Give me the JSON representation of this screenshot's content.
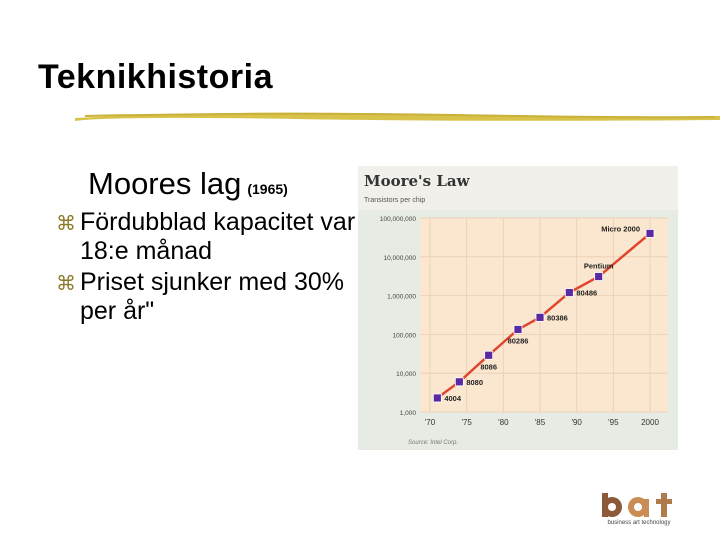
{
  "slide": {
    "title": "Teknikhistoria",
    "subtitle": "Moores lag",
    "subtitle_year": "(1965)",
    "bullet_icon": "z-bullet-icon",
    "bullets": [
      "Fördubblad kapacitet var 18:e månad",
      "Priset sjunker med 30% per år\""
    ],
    "logo_text": "business art technology"
  },
  "colors": {
    "accent": "#d8c24a",
    "chart_bg": "#fbe7cf",
    "chart_header_bg": "#f1f0ea",
    "chart_axis_bg": "#e6ebe4",
    "line": "#e0452e",
    "marker": "#5a2aa0"
  },
  "chart_data": {
    "type": "line",
    "title": "Moore's Law",
    "subtitle": "Transistors per chip",
    "source": "Source: Intel Corp.",
    "scale": "log",
    "ylim": [
      1000,
      100000000
    ],
    "yticks": [
      {
        "value": 100000000,
        "label": "100,000,000"
      },
      {
        "value": 10000000,
        "label": "10,000,000"
      },
      {
        "value": 1000000,
        "label": "1,000,000"
      },
      {
        "value": 100000,
        "label": "100,000"
      },
      {
        "value": 10000,
        "label": "10,000"
      },
      {
        "value": 1000,
        "label": "1,000"
      }
    ],
    "xlim": [
      1970,
      2000
    ],
    "xticks": [
      {
        "value": 1970,
        "label": "'70"
      },
      {
        "value": 1975,
        "label": "'75"
      },
      {
        "value": 1980,
        "label": "'80"
      },
      {
        "value": 1985,
        "label": "'85"
      },
      {
        "value": 1990,
        "label": "'90"
      },
      {
        "value": 1995,
        "label": "'95"
      },
      {
        "value": 2000,
        "label": "2000"
      }
    ],
    "points": [
      {
        "label": "4004",
        "x": 1971,
        "y": 2300,
        "label_pos": "right"
      },
      {
        "label": "8080",
        "x": 1974,
        "y": 6000,
        "label_pos": "right"
      },
      {
        "label": "8086",
        "x": 1978,
        "y": 29000,
        "label_pos": "below"
      },
      {
        "label": "80286",
        "x": 1982,
        "y": 134000,
        "label_pos": "below"
      },
      {
        "label": "80386",
        "x": 1985,
        "y": 275000,
        "label_pos": "right"
      },
      {
        "label": "80486",
        "x": 1989,
        "y": 1200000,
        "label_pos": "right"
      },
      {
        "label": "Pentium",
        "x": 1993,
        "y": 3100000,
        "label_pos": "above"
      },
      {
        "label": "Micro 2000",
        "x": 2000,
        "y": 40000000,
        "label_pos": "left"
      }
    ]
  }
}
